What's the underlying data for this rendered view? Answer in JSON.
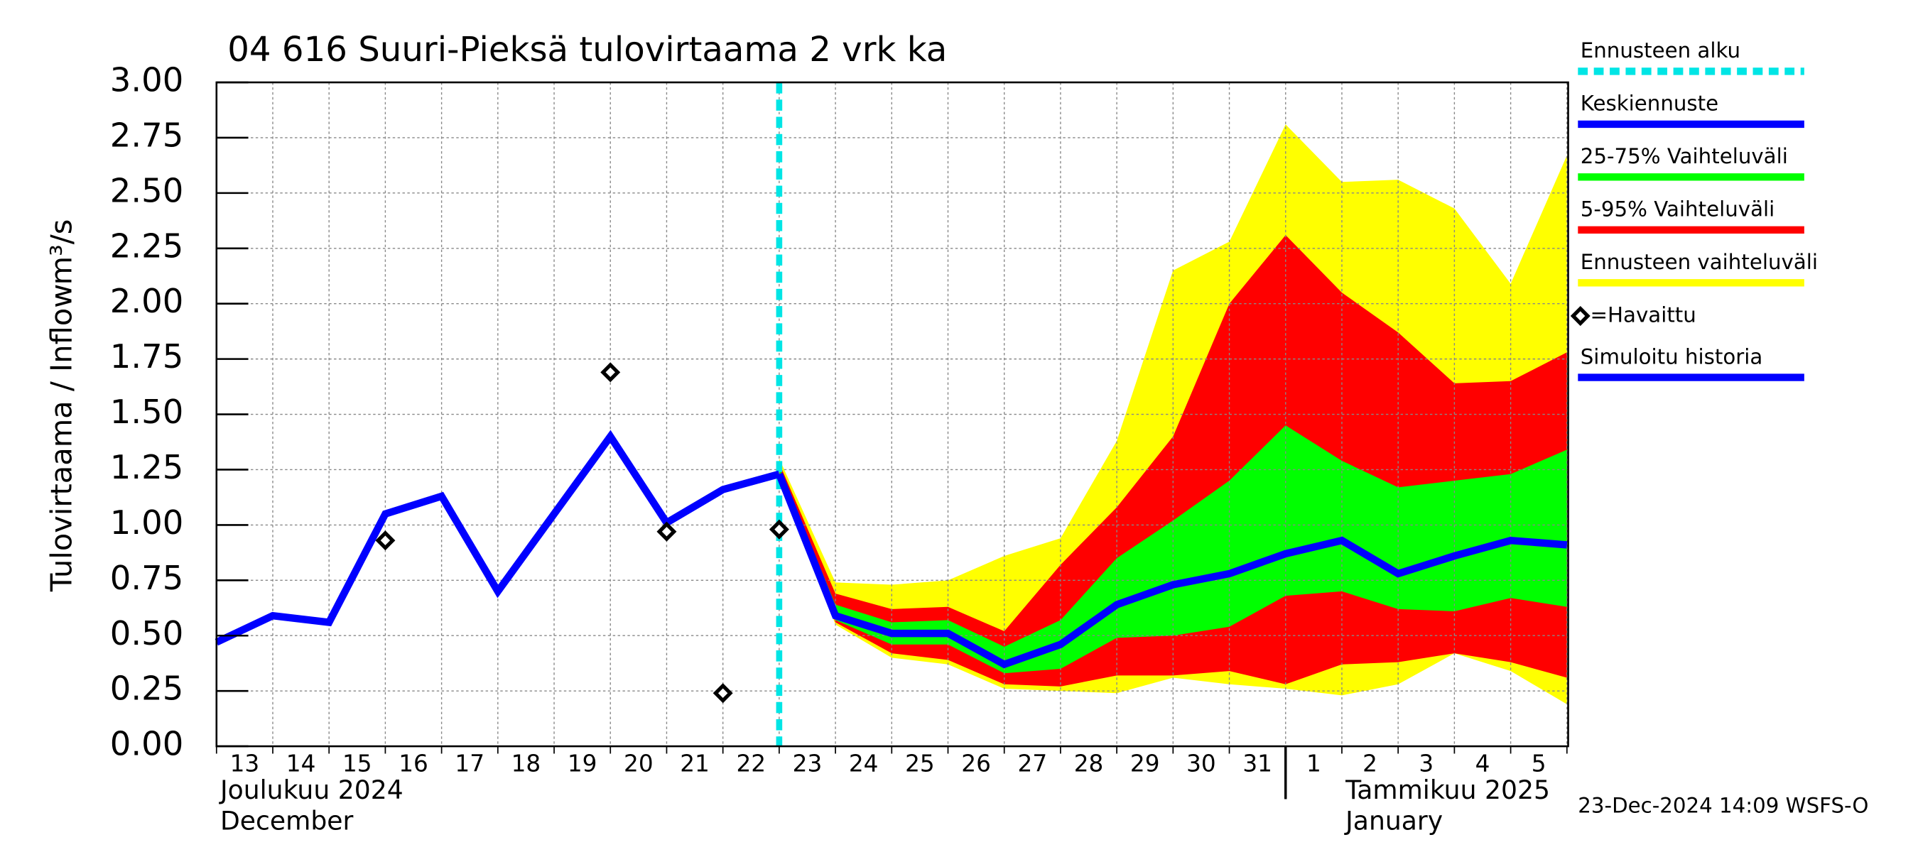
{
  "chart_data": {
    "type": "forecast",
    "title": "04 616 Suuri-Pieksä tulovirtaama 2 vrk ka",
    "y_label": "Tulovirtaama / Inflow",
    "y_unit": "m³/s",
    "month_labels": [
      "Joulukuu  2024",
      "December",
      "Tammikuu  2025",
      "January"
    ],
    "timestamp": "23-Dec-2024 14:09 WSFS-O",
    "categories": [
      "13",
      "14",
      "15",
      "16",
      "17",
      "18",
      "19",
      "20",
      "21",
      "22",
      "23",
      "24",
      "25",
      "26",
      "27",
      "28",
      "29",
      "30",
      "31",
      "1",
      "2",
      "3",
      "4",
      "5",
      null
    ],
    "ylim": [
      0,
      3
    ],
    "yticks": [
      {
        "value": 0,
        "label": "0.00"
      },
      0.25,
      {
        "value": 0.5,
        "label": "0.50"
      },
      0.75,
      {
        "value": 1,
        "label": "1.00"
      },
      1.25,
      {
        "value": 1.5,
        "label": "1.50"
      },
      1.75,
      {
        "value": 2,
        "label": "2.00"
      },
      2.25,
      {
        "value": 2.5,
        "label": "2.50"
      },
      2.75,
      {
        "value": 3,
        "label": "3.00"
      }
    ],
    "grid": true,
    "series": [
      {
        "name": "Ennusteen alku",
        "kind": "vline",
        "color": "#00e5e5",
        "at": "23"
      },
      {
        "name": "Keskiennuste",
        "kind": "line",
        "color": "#0000ff",
        "values": [
          null,
          null,
          null,
          null,
          null,
          null,
          null,
          null,
          null,
          null,
          1.23,
          0.59,
          0.51,
          0.51,
          0.37,
          0.46,
          0.64,
          0.73,
          0.78,
          0.87,
          0.93,
          0.78,
          0.86,
          0.93,
          0.91
        ]
      },
      {
        "name": "25-75% Vaihteluväli",
        "kind": "band",
        "color": "#00ff00",
        "high": [
          null,
          null,
          null,
          null,
          null,
          null,
          null,
          null,
          null,
          null,
          1.26,
          0.64,
          0.56,
          0.57,
          0.45,
          0.57,
          0.85,
          1.02,
          1.2,
          1.45,
          1.29,
          1.17,
          1.2,
          1.23,
          1.34
        ],
        "low": [
          null,
          null,
          null,
          null,
          null,
          null,
          null,
          null,
          null,
          null,
          1.23,
          0.57,
          0.46,
          0.46,
          0.33,
          0.35,
          0.49,
          0.5,
          0.54,
          0.68,
          0.7,
          0.62,
          0.61,
          0.67,
          0.63
        ]
      },
      {
        "name": "5-95% Vaihteluväli",
        "kind": "band",
        "color": "#ff0000",
        "high": [
          null,
          null,
          null,
          null,
          null,
          null,
          null,
          null,
          null,
          null,
          1.28,
          0.69,
          0.62,
          0.63,
          0.52,
          0.82,
          1.08,
          1.4,
          2.0,
          2.31,
          2.05,
          1.87,
          1.64,
          1.65,
          1.78
        ],
        "low": [
          null,
          null,
          null,
          null,
          null,
          null,
          null,
          null,
          null,
          null,
          1.22,
          0.56,
          0.42,
          0.39,
          0.28,
          0.27,
          0.32,
          0.32,
          0.34,
          0.28,
          0.37,
          0.38,
          0.42,
          0.38,
          0.31
        ]
      },
      {
        "name": "Ennusteen vaihteluväli",
        "kind": "band",
        "color": "#ffff00",
        "high": [
          null,
          null,
          null,
          null,
          null,
          null,
          null,
          null,
          null,
          null,
          1.3,
          0.74,
          0.73,
          0.75,
          0.86,
          0.94,
          1.38,
          2.15,
          2.28,
          2.81,
          2.55,
          2.56,
          2.43,
          2.09,
          2.67
        ],
        "low": [
          null,
          null,
          null,
          null,
          null,
          null,
          null,
          null,
          null,
          null,
          1.21,
          0.55,
          0.4,
          0.37,
          0.26,
          0.25,
          0.24,
          0.31,
          0.28,
          0.26,
          0.23,
          0.28,
          0.42,
          0.34,
          0.19
        ]
      },
      {
        "name": "=Havaittu",
        "kind": "points",
        "color": "#000000",
        "values": [
          null,
          null,
          null,
          0.93,
          null,
          null,
          null,
          1.69,
          0.97,
          0.24,
          0.98,
          null,
          null,
          null,
          null,
          null,
          null,
          null,
          null,
          null,
          null,
          null,
          null,
          null,
          null
        ]
      },
      {
        "name": "Simuloitu historia",
        "kind": "line",
        "color": "#0000ff",
        "values": [
          0.47,
          0.59,
          0.56,
          1.05,
          1.13,
          0.7,
          1.05,
          1.4,
          1.01,
          1.16,
          1.23,
          null,
          null,
          null,
          null,
          null,
          null,
          null,
          null,
          null,
          null,
          null,
          null,
          null,
          null
        ]
      }
    ]
  }
}
